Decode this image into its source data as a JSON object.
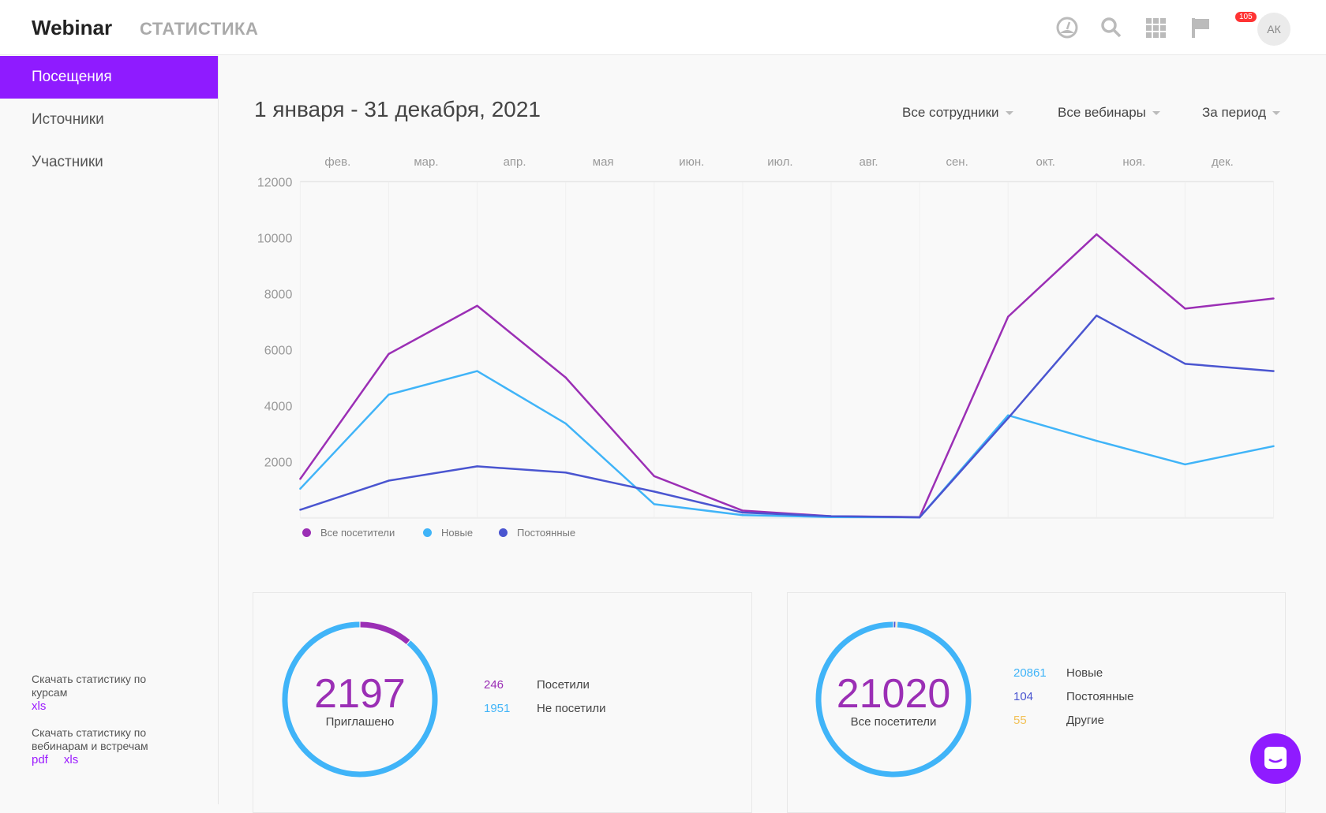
{
  "header": {
    "logo": "Webinar",
    "section": "СТАТИСТИКА",
    "notifications": "105",
    "avatar": "АК",
    "icons": [
      "speedometer-icon",
      "search-icon",
      "apps-grid-icon",
      "flag-icon"
    ]
  },
  "sidebar": {
    "items": [
      {
        "label": "Посещения",
        "active": true
      },
      {
        "label": "Источники"
      },
      {
        "label": "Участники"
      }
    ],
    "download_courses": {
      "text": "Скачать статистику по курсам",
      "links": [
        "xls"
      ]
    },
    "download_webinars": {
      "text": "Скачать статистику по вебинарам и встречам",
      "links": [
        "pdf",
        "xls"
      ]
    }
  },
  "main": {
    "date_range": "1 января - 31 декабря, 2021",
    "filters": [
      "Все сотрудники",
      "Все вебинары",
      "За период"
    ]
  },
  "chart_data": {
    "type": "line",
    "title": "",
    "xlabel": "",
    "ylabel": "",
    "x_labels": [
      "фев.",
      "мар.",
      "апр.",
      "мая",
      "июн.",
      "июл.",
      "авг.",
      "сен.",
      "окт.",
      "ноя.",
      "дек."
    ],
    "y_ticks": [
      2000,
      4000,
      6000,
      8000,
      10000,
      12000
    ],
    "ylim": [
      0,
      12000
    ],
    "grid": true,
    "legend_position": "bottom-left",
    "series": [
      {
        "name": "Все посетители",
        "color": "#9b2fb5",
        "values": [
          1390,
          5850,
          7570,
          5010,
          1490,
          260,
          60,
          30,
          7180,
          10120,
          7470,
          7830
        ]
      },
      {
        "name": "Новые",
        "color": "#40b4f8",
        "values": [
          1040,
          4400,
          5240,
          3370,
          490,
          100,
          30,
          20,
          3660,
          2750,
          1910,
          2560
        ]
      },
      {
        "name": "Постоянные",
        "color": "#4a55d0",
        "values": [
          290,
          1330,
          1840,
          1620,
          940,
          190,
          60,
          20,
          3560,
          7220,
          5500,
          5240
        ]
      }
    ]
  },
  "cards": [
    {
      "total": "2197",
      "label": "Приглашено",
      "rows": [
        {
          "value": "246",
          "label": "Посетили",
          "color": "#9b2fb5"
        },
        {
          "value": "1951",
          "label": "Не посетили",
          "color": "#40b4f8"
        }
      ]
    },
    {
      "total": "21020",
      "label": "Все посетители",
      "rows": [
        {
          "value": "20861",
          "label": "Новые",
          "color": "#40b4f8"
        },
        {
          "value": "104",
          "label": "Постоянные",
          "color": "#4a55d0"
        },
        {
          "value": "55",
          "label": "Другие",
          "color": "#f2c25a"
        }
      ]
    }
  ]
}
